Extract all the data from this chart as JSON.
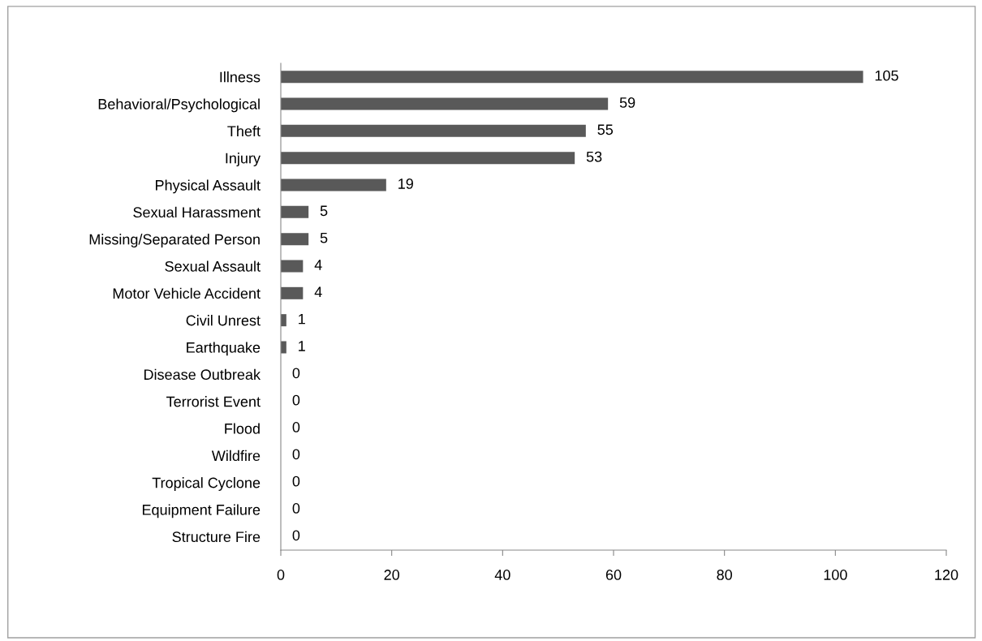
{
  "chart_data": {
    "type": "bar",
    "orientation": "horizontal",
    "categories": [
      "Illness",
      "Behavioral/Psychological",
      "Theft",
      "Injury",
      "Physical Assault",
      "Sexual Harassment",
      "Missing/Separated Person",
      "Sexual Assault",
      "Motor Vehicle Accident",
      "Civil Unrest",
      "Earthquake",
      "Disease Outbreak",
      "Terrorist Event",
      "Flood",
      "Wildfire",
      "Tropical Cyclone",
      "Equipment Failure",
      "Structure Fire"
    ],
    "values": [
      105,
      59,
      55,
      53,
      19,
      5,
      5,
      4,
      4,
      1,
      1,
      0,
      0,
      0,
      0,
      0,
      0,
      0
    ],
    "color": "#595959",
    "xlim": [
      0,
      120
    ],
    "xticks": [
      0,
      20,
      40,
      60,
      80,
      100,
      120
    ],
    "data_labels": true,
    "grid": false,
    "legend": false
  }
}
